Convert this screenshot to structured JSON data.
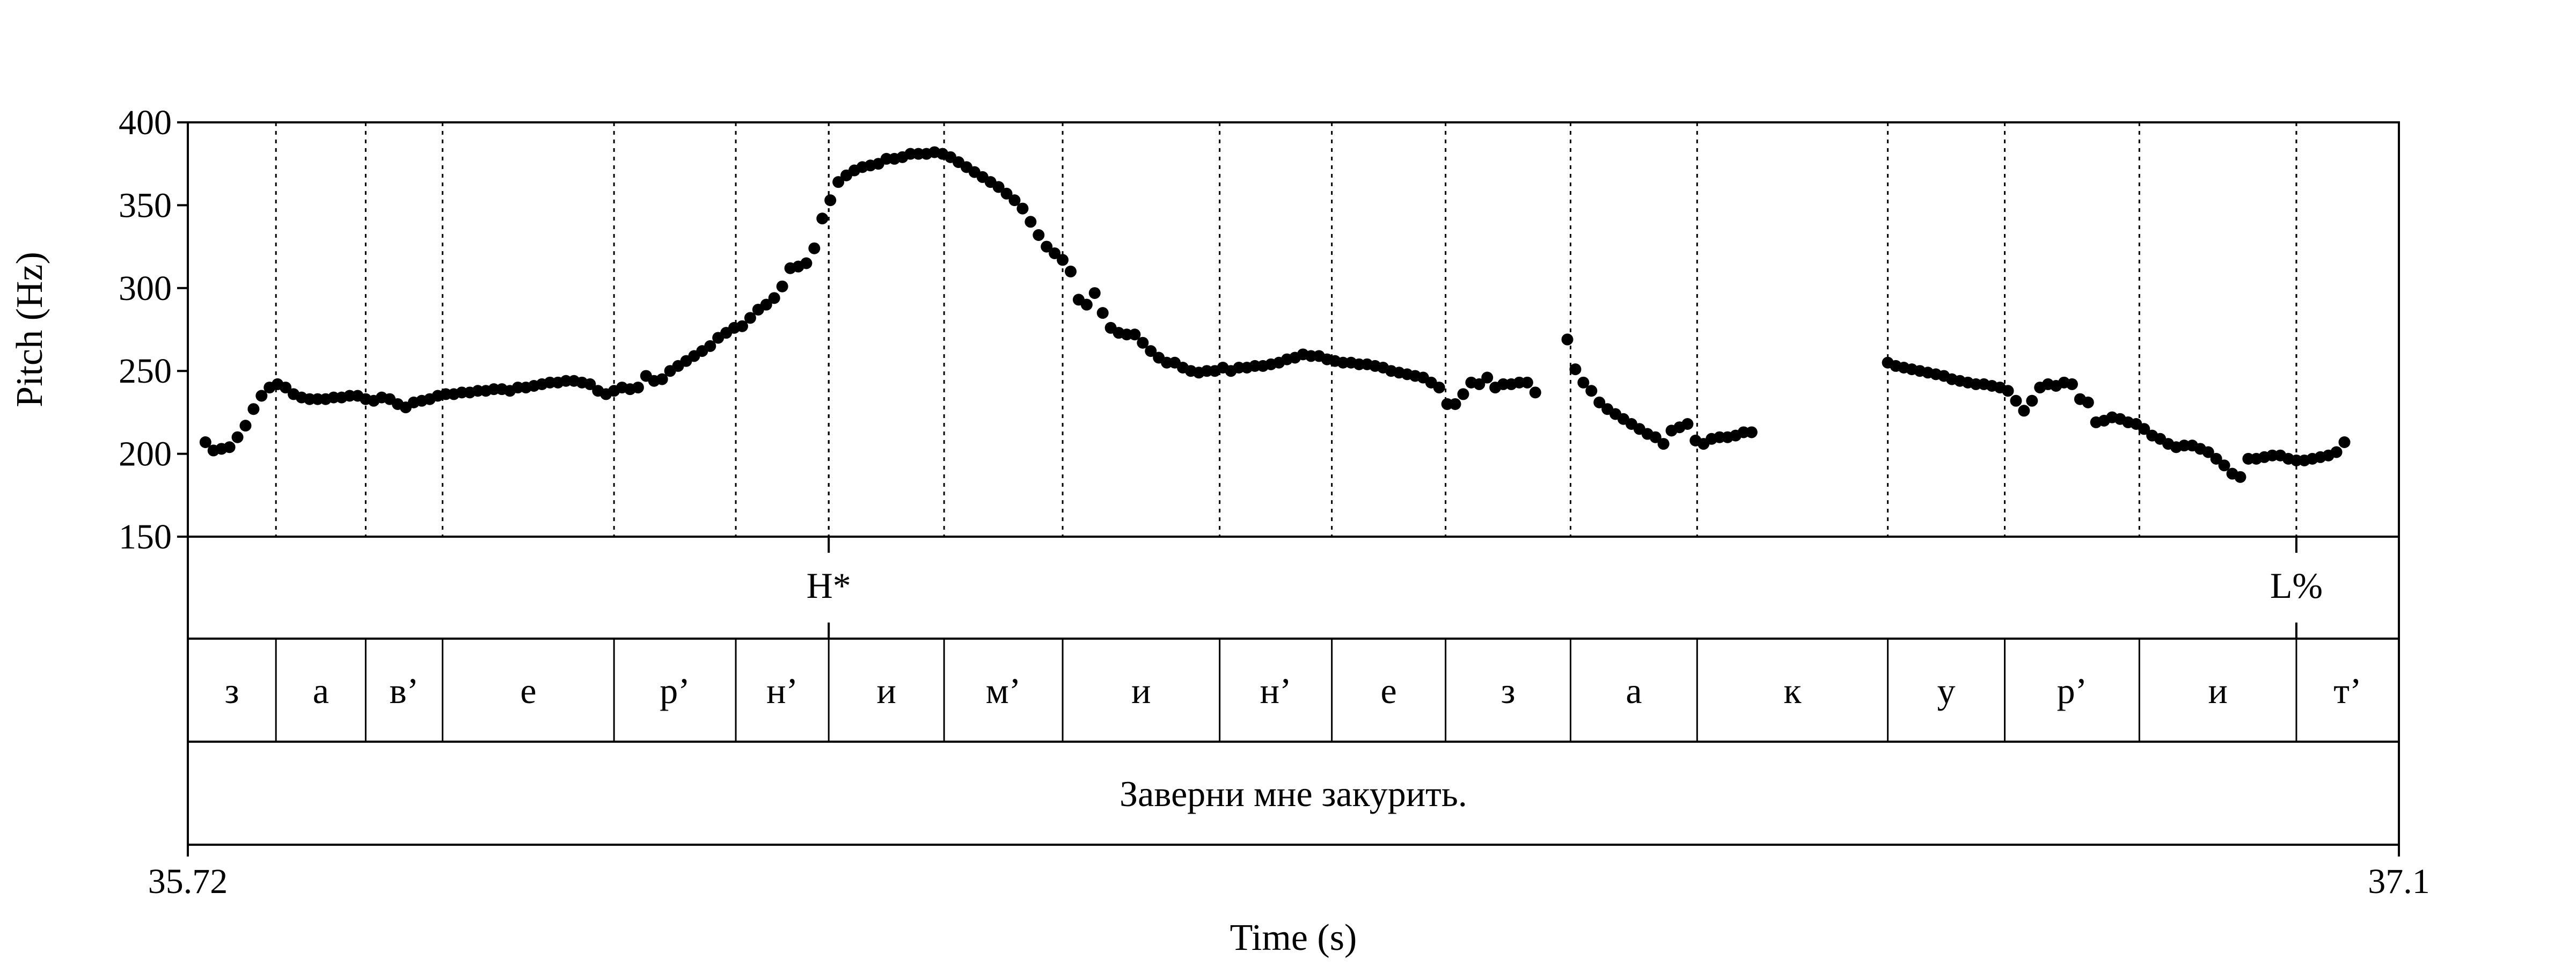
{
  "chart_data": {
    "type": "scatter",
    "xlabel": "Time (s)",
    "ylabel": "Pitch (Hz)",
    "xlim": [
      35.72,
      37.1
    ],
    "ylim": [
      150,
      400
    ],
    "x_tick_labels": [
      "35.72",
      "37.1"
    ],
    "y_ticks": [
      150,
      200,
      250,
      300,
      350,
      400
    ],
    "y_tick_labels": [
      "150",
      "200",
      "250",
      "300",
      "350",
      "400"
    ],
    "grid": "dotted vertical lines at segment boundaries",
    "point_color": "#000000",
    "tone_tier": [
      {
        "label": "H*",
        "time": 36.12
      },
      {
        "label": "L%",
        "time": 37.036
      }
    ],
    "segment_tier": [
      {
        "label": "з",
        "start": 35.72,
        "end": 35.775
      },
      {
        "label": "а",
        "start": 35.775,
        "end": 35.831
      },
      {
        "label": "в’",
        "start": 35.831,
        "end": 35.879
      },
      {
        "label": "е",
        "start": 35.879,
        "end": 35.986
      },
      {
        "label": "р’",
        "start": 35.986,
        "end": 36.062
      },
      {
        "label": "н’",
        "start": 36.062,
        "end": 36.12
      },
      {
        "label": "и",
        "start": 36.12,
        "end": 36.192
      },
      {
        "label": "м’",
        "start": 36.192,
        "end": 36.266
      },
      {
        "label": "и",
        "start": 36.266,
        "end": 36.364
      },
      {
        "label": "н’",
        "start": 36.364,
        "end": 36.434
      },
      {
        "label": "е",
        "start": 36.434,
        "end": 36.505
      },
      {
        "label": "з",
        "start": 36.505,
        "end": 36.583
      },
      {
        "label": "а",
        "start": 36.583,
        "end": 36.662
      },
      {
        "label": "к",
        "start": 36.662,
        "end": 36.781
      },
      {
        "label": "у",
        "start": 36.781,
        "end": 36.854
      },
      {
        "label": "р’",
        "start": 36.854,
        "end": 36.938
      },
      {
        "label": "и",
        "start": 36.938,
        "end": 37.036
      },
      {
        "label": "т’",
        "start": 37.036,
        "end": 37.1
      }
    ],
    "sentence_tier": [
      {
        "label": "Заверни мне закурить.",
        "start": 35.72,
        "end": 37.1
      }
    ],
    "pitch_points": [
      [
        35.731,
        207
      ],
      [
        35.736,
        202
      ],
      [
        35.741,
        203
      ],
      [
        35.746,
        204
      ],
      [
        35.751,
        210
      ],
      [
        35.756,
        217
      ],
      [
        35.761,
        227
      ],
      [
        35.766,
        235
      ],
      [
        35.771,
        240
      ],
      [
        35.776,
        242
      ],
      [
        35.781,
        240
      ],
      [
        35.786,
        236
      ],
      [
        35.791,
        234
      ],
      [
        35.796,
        233
      ],
      [
        35.801,
        233
      ],
      [
        35.806,
        233
      ],
      [
        35.811,
        234
      ],
      [
        35.816,
        234
      ],
      [
        35.821,
        235
      ],
      [
        35.826,
        235
      ],
      [
        35.831,
        233
      ],
      [
        35.836,
        232
      ],
      [
        35.841,
        234
      ],
      [
        35.846,
        233
      ],
      [
        35.851,
        230
      ],
      [
        35.856,
        228
      ],
      [
        35.861,
        231
      ],
      [
        35.866,
        232
      ],
      [
        35.871,
        233
      ],
      [
        35.876,
        235
      ],
      [
        35.881,
        236
      ],
      [
        35.886,
        236
      ],
      [
        35.891,
        237
      ],
      [
        35.896,
        237
      ],
      [
        35.901,
        238
      ],
      [
        35.906,
        238
      ],
      [
        35.911,
        239
      ],
      [
        35.916,
        239
      ],
      [
        35.921,
        238
      ],
      [
        35.926,
        240
      ],
      [
        35.931,
        240
      ],
      [
        35.936,
        241
      ],
      [
        35.941,
        242
      ],
      [
        35.946,
        243
      ],
      [
        35.951,
        243
      ],
      [
        35.956,
        244
      ],
      [
        35.961,
        244
      ],
      [
        35.966,
        243
      ],
      [
        35.971,
        242
      ],
      [
        35.976,
        238
      ],
      [
        35.981,
        236
      ],
      [
        35.986,
        238
      ],
      [
        35.991,
        240
      ],
      [
        35.996,
        239
      ],
      [
        36.001,
        240
      ],
      [
        36.006,
        247
      ],
      [
        36.011,
        244
      ],
      [
        36.016,
        245
      ],
      [
        36.021,
        250
      ],
      [
        36.026,
        253
      ],
      [
        36.031,
        256
      ],
      [
        36.036,
        259
      ],
      [
        36.041,
        262
      ],
      [
        36.046,
        265
      ],
      [
        36.051,
        270
      ],
      [
        36.056,
        273
      ],
      [
        36.061,
        276
      ],
      [
        36.066,
        277
      ],
      [
        36.071,
        282
      ],
      [
        36.076,
        287
      ],
      [
        36.081,
        290
      ],
      [
        36.086,
        294
      ],
      [
        36.091,
        301
      ],
      [
        36.096,
        312
      ],
      [
        36.101,
        313
      ],
      [
        36.106,
        315
      ],
      [
        36.111,
        324
      ],
      [
        36.116,
        342
      ],
      [
        36.121,
        353
      ],
      [
        36.126,
        364
      ],
      [
        36.131,
        368
      ],
      [
        36.136,
        371
      ],
      [
        36.141,
        373
      ],
      [
        36.146,
        374
      ],
      [
        36.151,
        375
      ],
      [
        36.156,
        378
      ],
      [
        36.161,
        378
      ],
      [
        36.166,
        379
      ],
      [
        36.171,
        381
      ],
      [
        36.176,
        381
      ],
      [
        36.181,
        381
      ],
      [
        36.186,
        382
      ],
      [
        36.191,
        381
      ],
      [
        36.196,
        379
      ],
      [
        36.201,
        376
      ],
      [
        36.206,
        373
      ],
      [
        36.211,
        370
      ],
      [
        36.216,
        367
      ],
      [
        36.221,
        364
      ],
      [
        36.226,
        361
      ],
      [
        36.231,
        357
      ],
      [
        36.236,
        353
      ],
      [
        36.241,
        348
      ],
      [
        36.246,
        340
      ],
      [
        36.251,
        332
      ],
      [
        36.256,
        325
      ],
      [
        36.261,
        321
      ],
      [
        36.266,
        317
      ],
      [
        36.271,
        310
      ],
      [
        36.276,
        293
      ],
      [
        36.281,
        290
      ],
      [
        36.286,
        297
      ],
      [
        36.291,
        285
      ],
      [
        36.296,
        276
      ],
      [
        36.301,
        273
      ],
      [
        36.306,
        272
      ],
      [
        36.311,
        272
      ],
      [
        36.316,
        267
      ],
      [
        36.321,
        262
      ],
      [
        36.326,
        258
      ],
      [
        36.331,
        255
      ],
      [
        36.336,
        255
      ],
      [
        36.341,
        252
      ],
      [
        36.346,
        250
      ],
      [
        36.351,
        249
      ],
      [
        36.356,
        250
      ],
      [
        36.361,
        250
      ],
      [
        36.366,
        252
      ],
      [
        36.371,
        250
      ],
      [
        36.376,
        252
      ],
      [
        36.381,
        252
      ],
      [
        36.386,
        253
      ],
      [
        36.391,
        253
      ],
      [
        36.396,
        254
      ],
      [
        36.401,
        255
      ],
      [
        36.406,
        257
      ],
      [
        36.411,
        258
      ],
      [
        36.416,
        260
      ],
      [
        36.421,
        259
      ],
      [
        36.426,
        259
      ],
      [
        36.431,
        257
      ],
      [
        36.436,
        256
      ],
      [
        36.441,
        255
      ],
      [
        36.446,
        255
      ],
      [
        36.451,
        254
      ],
      [
        36.456,
        254
      ],
      [
        36.461,
        253
      ],
      [
        36.466,
        252
      ],
      [
        36.471,
        250
      ],
      [
        36.476,
        249
      ],
      [
        36.481,
        248
      ],
      [
        36.486,
        247
      ],
      [
        36.491,
        246
      ],
      [
        36.496,
        243
      ],
      [
        36.501,
        240
      ],
      [
        36.506,
        230
      ],
      [
        36.511,
        230
      ],
      [
        36.516,
        236
      ],
      [
        36.521,
        243
      ],
      [
        36.526,
        242
      ],
      [
        36.531,
        246
      ],
      [
        36.536,
        240
      ],
      [
        36.541,
        242
      ],
      [
        36.546,
        242
      ],
      [
        36.551,
        243
      ],
      [
        36.556,
        243
      ],
      [
        36.561,
        237
      ],
      [
        36.581,
        269
      ],
      [
        36.586,
        251
      ],
      [
        36.591,
        243
      ],
      [
        36.596,
        238
      ],
      [
        36.601,
        231
      ],
      [
        36.606,
        227
      ],
      [
        36.611,
        224
      ],
      [
        36.616,
        221
      ],
      [
        36.621,
        218
      ],
      [
        36.626,
        215
      ],
      [
        36.631,
        212
      ],
      [
        36.636,
        210
      ],
      [
        36.641,
        206
      ],
      [
        36.646,
        214
      ],
      [
        36.651,
        216
      ],
      [
        36.656,
        218
      ],
      [
        36.661,
        208
      ],
      [
        36.666,
        206
      ],
      [
        36.671,
        209
      ],
      [
        36.676,
        210
      ],
      [
        36.681,
        210
      ],
      [
        36.686,
        211
      ],
      [
        36.691,
        213
      ],
      [
        36.696,
        213
      ],
      [
        36.781,
        255
      ],
      [
        36.786,
        253
      ],
      [
        36.791,
        252
      ],
      [
        36.796,
        251
      ],
      [
        36.801,
        250
      ],
      [
        36.806,
        249
      ],
      [
        36.811,
        248
      ],
      [
        36.816,
        247
      ],
      [
        36.821,
        245
      ],
      [
        36.826,
        244
      ],
      [
        36.831,
        243
      ],
      [
        36.836,
        242
      ],
      [
        36.841,
        242
      ],
      [
        36.846,
        241
      ],
      [
        36.851,
        240
      ],
      [
        36.856,
        238
      ],
      [
        36.861,
        232
      ],
      [
        36.866,
        226
      ],
      [
        36.871,
        232
      ],
      [
        36.876,
        240
      ],
      [
        36.881,
        242
      ],
      [
        36.886,
        241
      ],
      [
        36.891,
        243
      ],
      [
        36.896,
        242
      ],
      [
        36.901,
        233
      ],
      [
        36.906,
        231
      ],
      [
        36.911,
        219
      ],
      [
        36.916,
        220
      ],
      [
        36.921,
        222
      ],
      [
        36.926,
        221
      ],
      [
        36.931,
        219
      ],
      [
        36.936,
        218
      ],
      [
        36.941,
        215
      ],
      [
        36.946,
        211
      ],
      [
        36.951,
        209
      ],
      [
        36.956,
        206
      ],
      [
        36.961,
        204
      ],
      [
        36.966,
        205
      ],
      [
        36.971,
        205
      ],
      [
        36.976,
        203
      ],
      [
        36.981,
        201
      ],
      [
        36.986,
        197
      ],
      [
        36.991,
        193
      ],
      [
        36.996,
        188
      ],
      [
        37.001,
        186
      ],
      [
        37.006,
        197
      ],
      [
        37.011,
        197
      ],
      [
        37.016,
        198
      ],
      [
        37.021,
        199
      ],
      [
        37.026,
        199
      ],
      [
        37.031,
        197
      ],
      [
        37.036,
        196
      ],
      [
        37.041,
        196
      ],
      [
        37.046,
        197
      ],
      [
        37.051,
        198
      ],
      [
        37.056,
        199
      ],
      [
        37.061,
        201
      ],
      [
        37.066,
        207
      ]
    ]
  }
}
